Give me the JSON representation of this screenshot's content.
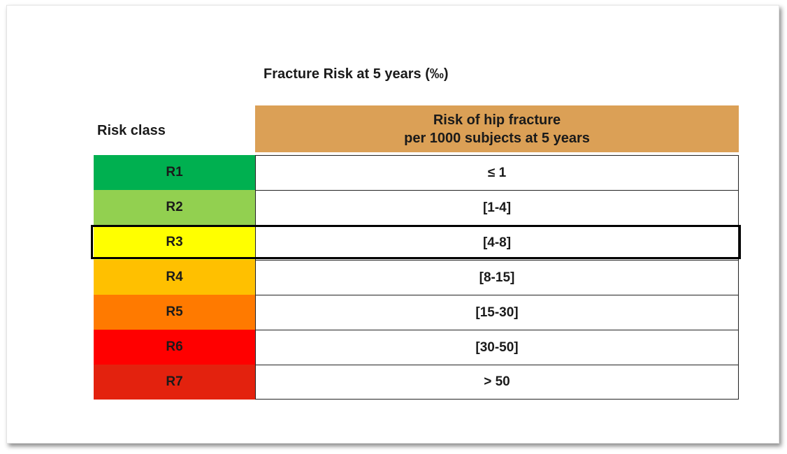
{
  "title": "Fracture Risk at 5 years (‰)",
  "table": {
    "col1_header": "Risk class",
    "col2_header_line1": "Risk of hip fracture",
    "col2_header_line2": "per 1000 subjects at 5 years",
    "header_color": "#dba056",
    "highlighted_class": "R3",
    "rows": [
      {
        "class": "R1",
        "value": "≤ 1",
        "color": "#00b050"
      },
      {
        "class": "R2",
        "value": "[1-4]",
        "color": "#92d050"
      },
      {
        "class": "R3",
        "value": "[4-8]",
        "color": "#ffff00"
      },
      {
        "class": "R4",
        "value": "[8-15]",
        "color": "#ffc000"
      },
      {
        "class": "R5",
        "value": "[15-30]",
        "color": "#ff7a00"
      },
      {
        "class": "R6",
        "value": "[30-50]",
        "color": "#ff0000"
      },
      {
        "class": "R7",
        "value": "> 50",
        "color": "#e3220e"
      }
    ]
  }
}
